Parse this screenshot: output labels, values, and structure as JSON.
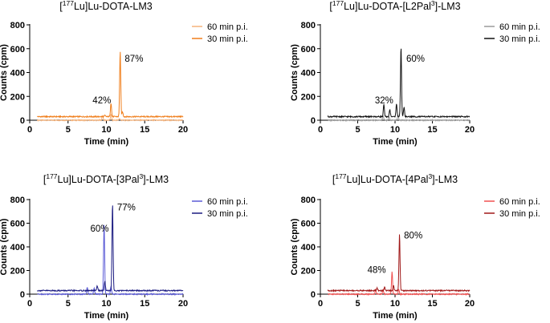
{
  "chart_data": [
    {
      "type": "line",
      "title": "[177Lu]Lu-DOTA-LM3",
      "title_parts": {
        "pre": "[",
        "sup": "177",
        "post": "Lu]Lu-DOTA-LM3"
      },
      "xlabel": "Time  (min)",
      "ylabel": "Counts (cpm)",
      "xlim": [
        0,
        20
      ],
      "ylim": [
        0,
        800
      ],
      "xticks": [
        "0",
        "5",
        "10",
        "15",
        "20"
      ],
      "yticks": [
        "0",
        "200",
        "400",
        "600",
        "800"
      ],
      "legend_position": "top-right",
      "series": [
        {
          "name": "60 min p.i.",
          "color": "#f5b27a",
          "baseline": 0,
          "peaks": [
            [
              9.5,
              40
            ],
            [
              10.6,
              45
            ],
            [
              11.7,
              15
            ]
          ]
        },
        {
          "name": "30 min p.i.",
          "color": "#f07e1b",
          "baseline": 30,
          "peaks": [
            [
              9.8,
              10
            ],
            [
              10.6,
              115
            ],
            [
              11.8,
              550
            ],
            [
              12.1,
              40
            ]
          ]
        }
      ],
      "annotations": [
        {
          "text": "87%",
          "x": 12.4,
          "y": 490
        },
        {
          "text": "42%",
          "x": 8.2,
          "y": 140
        }
      ]
    },
    {
      "type": "line",
      "title": "[177Lu]Lu-DOTA-[L2Pal3]-LM3",
      "title_parts": {
        "pre": "[",
        "sup": "177",
        "mid": "Lu]Lu-DOTA-[L2Pal",
        "sup2": "3",
        "post": "]-LM3"
      },
      "xlabel": "Time  (min)",
      "ylabel": "Counts (cpm)",
      "xlim": [
        0,
        20
      ],
      "ylim": [
        0,
        800
      ],
      "xticks": [
        "0",
        "5",
        "10",
        "15",
        "20"
      ],
      "yticks": [
        "0",
        "200",
        "400",
        "600",
        "800"
      ],
      "legend_position": "top-right",
      "series": [
        {
          "name": "60 min p.i.",
          "color": "#9a9a9a",
          "baseline": 0,
          "peaks": [
            [
              8.4,
              40
            ],
            [
              9.2,
              30
            ],
            [
              10.4,
              45
            ]
          ]
        },
        {
          "name": "30 min p.i.",
          "color": "#111111",
          "baseline": 30,
          "peaks": [
            [
              8.5,
              100
            ],
            [
              9.3,
              60
            ],
            [
              10.2,
              110
            ],
            [
              10.8,
              590
            ],
            [
              11.2,
              80
            ]
          ]
        }
      ],
      "annotations": [
        {
          "text": "60%",
          "x": 11.5,
          "y": 490
        },
        {
          "text": "32%",
          "x": 7.3,
          "y": 140
        }
      ]
    },
    {
      "type": "line",
      "title": "[177Lu]Lu-DOTA-[3Pal3]-LM3",
      "title_parts": {
        "pre": "[",
        "sup": "177",
        "mid": "Lu]Lu-DOTA-[3Pal",
        "sup2": "3",
        "post": "]-LM3"
      },
      "xlabel": "Time  (min)",
      "ylabel": "Counts (cpm)",
      "xlim": [
        0,
        20
      ],
      "ylim": [
        0,
        800
      ],
      "xticks": [
        "0",
        "5",
        "10",
        "15",
        "20"
      ],
      "yticks": [
        "0",
        "200",
        "400",
        "600",
        "800"
      ],
      "legend_position": "top-right",
      "series": [
        {
          "name": "60 min p.i.",
          "color": "#5a5ad6",
          "baseline": 0,
          "peaks": [
            [
              7.5,
              60
            ],
            [
              8.4,
              50
            ],
            [
              9.7,
              600
            ],
            [
              10.6,
              60
            ]
          ]
        },
        {
          "name": "30 min p.i.",
          "color": "#1a1a80",
          "baseline": 30,
          "peaks": [
            [
              8.8,
              40
            ],
            [
              9.8,
              80
            ],
            [
              10.8,
              740
            ]
          ]
        }
      ],
      "annotations": [
        {
          "text": "77%",
          "x": 11.4,
          "y": 710
        },
        {
          "text": "60%",
          "x": 7.9,
          "y": 530
        }
      ]
    },
    {
      "type": "line",
      "title": "[177Lu]Lu-DOTA-[4Pal3]-LM3",
      "title_parts": {
        "pre": "[",
        "sup": "177",
        "mid": "Lu]Lu-DOTA-[4Pal",
        "sup2": "3",
        "post": "]-LM3"
      },
      "xlabel": "Time  (min)",
      "ylabel": "Counts (cpm)",
      "xlim": [
        0,
        20
      ],
      "ylim": [
        0,
        800
      ],
      "xticks": [
        "0",
        "5",
        "10",
        "15",
        "20"
      ],
      "yticks": [
        "0",
        "200",
        "400",
        "600",
        "800"
      ],
      "legend_position": "top-right",
      "series": [
        {
          "name": "60 min p.i.",
          "color": "#f05050",
          "baseline": 0,
          "peaks": [
            [
              7.4,
              40
            ],
            [
              8.4,
              35
            ],
            [
              9.6,
              190
            ],
            [
              10.5,
              40
            ]
          ]
        },
        {
          "name": "30 min p.i.",
          "color": "#a01818",
          "baseline": 30,
          "peaks": [
            [
              7.6,
              20
            ],
            [
              8.6,
              30
            ],
            [
              9.8,
              40
            ],
            [
              10.6,
              480
            ]
          ]
        }
      ],
      "annotations": [
        {
          "text": "80%",
          "x": 11.2,
          "y": 470
        },
        {
          "text": "48%",
          "x": 6.3,
          "y": 180
        }
      ]
    }
  ]
}
